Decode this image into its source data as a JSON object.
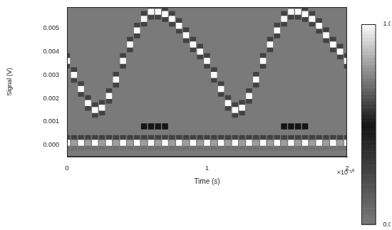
{
  "chart_data": {
    "type": "heatmap",
    "xlabel": "Time (s)",
    "ylabel": "Signal (V)",
    "x_exponent_label": "×10⁻¹⁰",
    "xlim": [
      0,
      2
    ],
    "xticks": [
      0,
      1,
      2
    ],
    "ylim": [
      -0.0005,
      0.0059
    ],
    "yticks": [
      {
        "value": 0,
        "label": "0.000"
      },
      {
        "value": 0.001,
        "label": "0.001"
      },
      {
        "value": 0.002,
        "label": "0.002"
      },
      {
        "value": 0.003,
        "label": "0.003"
      },
      {
        "value": 0.004,
        "label": "0.004"
      },
      {
        "value": 0.005,
        "label": "0.005"
      }
    ],
    "grid": false,
    "colorbar": {
      "range": [
        0,
        1
      ],
      "ticks": [
        {
          "value": 0,
          "label": "0.0"
        },
        {
          "value": 1,
          "label": "1.0"
        }
      ]
    },
    "cells": [
      [
        0,
        0.0038,
        0.6
      ],
      [
        0,
        0.0034,
        0.6
      ],
      [
        0,
        0.0036,
        1
      ],
      [
        0,
        0.0003,
        0.6
      ],
      [
        0,
        -0.0001,
        0.7
      ],
      [
        0,
        0.0001,
        1
      ],
      [
        0.05,
        0.0032,
        0.6
      ],
      [
        0.05,
        0.0028,
        0.6
      ],
      [
        0.05,
        0.003,
        1
      ],
      [
        0.05,
        0.0003,
        0.6
      ],
      [
        0.05,
        -0.0001,
        0.7
      ],
      [
        0.05,
        0.0001,
        0.8
      ],
      [
        0.1,
        0.0026,
        0.6
      ],
      [
        0.1,
        0.0022,
        0.6
      ],
      [
        0.1,
        0.0024,
        1
      ],
      [
        0.1,
        0.0003,
        0.6
      ],
      [
        0.1,
        -0.0001,
        0.7
      ],
      [
        0.1,
        0.0001,
        1
      ],
      [
        0.15,
        0.002,
        0.6
      ],
      [
        0.15,
        0.0016,
        0.6
      ],
      [
        0.15,
        0.0018,
        1
      ],
      [
        0.15,
        0.0003,
        0.6
      ],
      [
        0.15,
        -0.0001,
        0.7
      ],
      [
        0.15,
        0.0001,
        0.8
      ],
      [
        0.2,
        0.0017,
        0.6
      ],
      [
        0.2,
        0.0013,
        0.6
      ],
      [
        0.2,
        0.0015,
        1
      ],
      [
        0.2,
        0.0003,
        0.6
      ],
      [
        0.2,
        -0.0001,
        0.7
      ],
      [
        0.2,
        0.0001,
        1
      ],
      [
        0.25,
        0.0018,
        0.6
      ],
      [
        0.25,
        0.0014,
        0.6
      ],
      [
        0.25,
        0.0016,
        1
      ],
      [
        0.25,
        0.0003,
        0.6
      ],
      [
        0.25,
        -0.0001,
        0.7
      ],
      [
        0.25,
        0.0001,
        0.8
      ],
      [
        0.3,
        0.0023,
        0.6
      ],
      [
        0.3,
        0.0019,
        0.6
      ],
      [
        0.3,
        0.0021,
        1
      ],
      [
        0.3,
        0.0003,
        0.6
      ],
      [
        0.3,
        -0.0001,
        0.7
      ],
      [
        0.3,
        0.0001,
        1
      ],
      [
        0.35,
        0.003,
        0.6
      ],
      [
        0.35,
        0.0026,
        0.6
      ],
      [
        0.35,
        0.0028,
        1
      ],
      [
        0.35,
        0.0003,
        0.6
      ],
      [
        0.35,
        -0.0001,
        0.7
      ],
      [
        0.35,
        0.0001,
        0.8
      ],
      [
        0.4,
        0.0038,
        0.6
      ],
      [
        0.4,
        0.0034,
        0.6
      ],
      [
        0.4,
        0.0036,
        1
      ],
      [
        0.4,
        0.0003,
        0.6
      ],
      [
        0.4,
        -0.0001,
        0.7
      ],
      [
        0.4,
        0.0001,
        1
      ],
      [
        0.45,
        0.0045,
        0.6
      ],
      [
        0.45,
        0.0041,
        0.6
      ],
      [
        0.45,
        0.0043,
        1
      ],
      [
        0.45,
        0.0003,
        0.6
      ],
      [
        0.45,
        -0.0001,
        0.7
      ],
      [
        0.45,
        0.0001,
        0.8
      ],
      [
        0.5,
        0.0051,
        0.6
      ],
      [
        0.5,
        0.0047,
        0.6
      ],
      [
        0.5,
        0.0049,
        1
      ],
      [
        0.5,
        0.0003,
        0.6
      ],
      [
        0.5,
        -0.0001,
        0.7
      ],
      [
        0.5,
        0.0001,
        1
      ],
      [
        0.55,
        0.0056,
        0.6
      ],
      [
        0.55,
        0.0052,
        0.6
      ],
      [
        0.55,
        0.0054,
        1
      ],
      [
        0.55,
        0.0003,
        0.6
      ],
      [
        0.55,
        -0.0001,
        0.7
      ],
      [
        0.55,
        0.0001,
        0.8
      ],
      [
        0.55,
        0.0008,
        0.5
      ],
      [
        0.6,
        0.0059,
        0.6
      ],
      [
        0.6,
        0.0055,
        0.6
      ],
      [
        0.6,
        0.0057,
        1
      ],
      [
        0.6,
        0.0003,
        0.6
      ],
      [
        0.6,
        -0.0001,
        0.7
      ],
      [
        0.6,
        0.0001,
        1
      ],
      [
        0.6,
        0.0008,
        0.5
      ],
      [
        0.65,
        0.0059,
        0.6
      ],
      [
        0.65,
        0.0055,
        0.6
      ],
      [
        0.65,
        0.0057,
        1
      ],
      [
        0.65,
        0.0003,
        0.6
      ],
      [
        0.65,
        -0.0001,
        0.7
      ],
      [
        0.65,
        0.0001,
        0.8
      ],
      [
        0.65,
        0.0008,
        0.5
      ],
      [
        0.7,
        0.0058,
        0.6
      ],
      [
        0.7,
        0.0054,
        0.6
      ],
      [
        0.7,
        0.0056,
        1
      ],
      [
        0.7,
        0.0003,
        0.6
      ],
      [
        0.7,
        -0.0001,
        0.7
      ],
      [
        0.7,
        0.0001,
        1
      ],
      [
        0.7,
        0.0008,
        0.5
      ],
      [
        0.75,
        0.0056,
        0.6
      ],
      [
        0.75,
        0.0052,
        0.6
      ],
      [
        0.75,
        0.0054,
        1
      ],
      [
        0.75,
        0.0003,
        0.6
      ],
      [
        0.75,
        -0.0001,
        0.7
      ],
      [
        0.75,
        0.0001,
        0.8
      ],
      [
        0.8,
        0.0053,
        0.6
      ],
      [
        0.8,
        0.0049,
        0.6
      ],
      [
        0.8,
        0.0051,
        1
      ],
      [
        0.8,
        0.0003,
        0.6
      ],
      [
        0.8,
        -0.0001,
        0.7
      ],
      [
        0.8,
        0.0001,
        1
      ],
      [
        0.85,
        0.0049,
        0.6
      ],
      [
        0.85,
        0.0045,
        0.6
      ],
      [
        0.85,
        0.0047,
        1
      ],
      [
        0.85,
        0.0003,
        0.6
      ],
      [
        0.85,
        -0.0001,
        0.7
      ],
      [
        0.85,
        0.0001,
        0.8
      ],
      [
        0.9,
        0.0045,
        0.6
      ],
      [
        0.9,
        0.0041,
        0.6
      ],
      [
        0.9,
        0.0043,
        1
      ],
      [
        0.9,
        0.0003,
        0.6
      ],
      [
        0.9,
        -0.0001,
        0.7
      ],
      [
        0.9,
        0.0001,
        1
      ],
      [
        0.95,
        0.0042,
        0.6
      ],
      [
        0.95,
        0.0038,
        0.6
      ],
      [
        0.95,
        0.004,
        1
      ],
      [
        0.95,
        0.0003,
        0.6
      ],
      [
        0.95,
        -0.0001,
        0.7
      ],
      [
        0.95,
        0.0001,
        0.8
      ],
      [
        1,
        0.0038,
        0.6
      ],
      [
        1,
        0.0034,
        0.6
      ],
      [
        1,
        0.0036,
        1
      ],
      [
        1,
        0.0003,
        0.6
      ],
      [
        1,
        -0.0001,
        0.7
      ],
      [
        1,
        0.0001,
        1
      ],
      [
        1.05,
        0.0032,
        0.6
      ],
      [
        1.05,
        0.0028,
        0.6
      ],
      [
        1.05,
        0.003,
        1
      ],
      [
        1.05,
        0.0003,
        0.6
      ],
      [
        1.05,
        -0.0001,
        0.7
      ],
      [
        1.05,
        0.0001,
        0.8
      ],
      [
        1.1,
        0.0026,
        0.6
      ],
      [
        1.1,
        0.0022,
        0.6
      ],
      [
        1.1,
        0.0024,
        1
      ],
      [
        1.1,
        0.0003,
        0.6
      ],
      [
        1.1,
        -0.0001,
        0.7
      ],
      [
        1.1,
        0.0001,
        1
      ],
      [
        1.15,
        0.002,
        0.6
      ],
      [
        1.15,
        0.0016,
        0.6
      ],
      [
        1.15,
        0.0018,
        1
      ],
      [
        1.15,
        0.0003,
        0.6
      ],
      [
        1.15,
        -0.0001,
        0.7
      ],
      [
        1.15,
        0.0001,
        0.8
      ],
      [
        1.2,
        0.0017,
        0.6
      ],
      [
        1.2,
        0.0013,
        0.6
      ],
      [
        1.2,
        0.0015,
        1
      ],
      [
        1.2,
        0.0003,
        0.6
      ],
      [
        1.2,
        -0.0001,
        0.7
      ],
      [
        1.2,
        0.0001,
        1
      ],
      [
        1.25,
        0.0018,
        0.6
      ],
      [
        1.25,
        0.0014,
        0.6
      ],
      [
        1.25,
        0.0016,
        1
      ],
      [
        1.25,
        0.0003,
        0.6
      ],
      [
        1.25,
        -0.0001,
        0.7
      ],
      [
        1.25,
        0.0001,
        0.8
      ],
      [
        1.3,
        0.0023,
        0.6
      ],
      [
        1.3,
        0.0019,
        0.6
      ],
      [
        1.3,
        0.0021,
        1
      ],
      [
        1.3,
        0.0003,
        0.6
      ],
      [
        1.3,
        -0.0001,
        0.7
      ],
      [
        1.3,
        0.0001,
        1
      ],
      [
        1.35,
        0.003,
        0.6
      ],
      [
        1.35,
        0.0026,
        0.6
      ],
      [
        1.35,
        0.0028,
        1
      ],
      [
        1.35,
        0.0003,
        0.6
      ],
      [
        1.35,
        -0.0001,
        0.7
      ],
      [
        1.35,
        0.0001,
        0.8
      ],
      [
        1.4,
        0.0038,
        0.6
      ],
      [
        1.4,
        0.0034,
        0.6
      ],
      [
        1.4,
        0.0036,
        1
      ],
      [
        1.4,
        0.0003,
        0.6
      ],
      [
        1.4,
        -0.0001,
        0.7
      ],
      [
        1.4,
        0.0001,
        1
      ],
      [
        1.45,
        0.0045,
        0.6
      ],
      [
        1.45,
        0.0041,
        0.6
      ],
      [
        1.45,
        0.0043,
        1
      ],
      [
        1.45,
        0.0003,
        0.6
      ],
      [
        1.45,
        -0.0001,
        0.7
      ],
      [
        1.45,
        0.0001,
        0.8
      ],
      [
        1.5,
        0.0051,
        0.6
      ],
      [
        1.5,
        0.0047,
        0.6
      ],
      [
        1.5,
        0.0049,
        1
      ],
      [
        1.5,
        0.0003,
        0.6
      ],
      [
        1.5,
        -0.0001,
        0.7
      ],
      [
        1.5,
        0.0001,
        1
      ],
      [
        1.55,
        0.0056,
        0.6
      ],
      [
        1.55,
        0.0052,
        0.6
      ],
      [
        1.55,
        0.0054,
        1
      ],
      [
        1.55,
        0.0003,
        0.6
      ],
      [
        1.55,
        -0.0001,
        0.7
      ],
      [
        1.55,
        0.0001,
        0.8
      ],
      [
        1.55,
        0.0008,
        0.5
      ],
      [
        1.6,
        0.0059,
        0.6
      ],
      [
        1.6,
        0.0055,
        0.6
      ],
      [
        1.6,
        0.0057,
        1
      ],
      [
        1.6,
        0.0003,
        0.6
      ],
      [
        1.6,
        -0.0001,
        0.7
      ],
      [
        1.6,
        0.0001,
        1
      ],
      [
        1.6,
        0.0008,
        0.5
      ],
      [
        1.65,
        0.0059,
        0.6
      ],
      [
        1.65,
        0.0055,
        0.6
      ],
      [
        1.65,
        0.0057,
        1
      ],
      [
        1.65,
        0.0003,
        0.6
      ],
      [
        1.65,
        -0.0001,
        0.7
      ],
      [
        1.65,
        0.0001,
        0.8
      ],
      [
        1.65,
        0.0008,
        0.5
      ],
      [
        1.7,
        0.0058,
        0.6
      ],
      [
        1.7,
        0.0054,
        0.6
      ],
      [
        1.7,
        0.0056,
        1
      ],
      [
        1.7,
        0.0003,
        0.6
      ],
      [
        1.7,
        -0.0001,
        0.7
      ],
      [
        1.7,
        0.0001,
        1
      ],
      [
        1.7,
        0.0008,
        0.5
      ],
      [
        1.75,
        0.0056,
        0.6
      ],
      [
        1.75,
        0.0052,
        0.6
      ],
      [
        1.75,
        0.0054,
        1
      ],
      [
        1.75,
        0.0003,
        0.6
      ],
      [
        1.75,
        -0.0001,
        0.7
      ],
      [
        1.75,
        0.0001,
        0.8
      ],
      [
        1.8,
        0.0053,
        0.6
      ],
      [
        1.8,
        0.0049,
        0.6
      ],
      [
        1.8,
        0.0051,
        1
      ],
      [
        1.8,
        0.0003,
        0.6
      ],
      [
        1.8,
        -0.0001,
        0.7
      ],
      [
        1.8,
        0.0001,
        1
      ],
      [
        1.85,
        0.0049,
        0.6
      ],
      [
        1.85,
        0.0045,
        0.6
      ],
      [
        1.85,
        0.0047,
        1
      ],
      [
        1.85,
        0.0003,
        0.6
      ],
      [
        1.85,
        -0.0001,
        0.7
      ],
      [
        1.85,
        0.0001,
        0.8
      ],
      [
        1.9,
        0.0045,
        0.6
      ],
      [
        1.9,
        0.0041,
        0.6
      ],
      [
        1.9,
        0.0043,
        1
      ],
      [
        1.9,
        0.0003,
        0.6
      ],
      [
        1.9,
        -0.0001,
        0.7
      ],
      [
        1.9,
        0.0001,
        1
      ],
      [
        1.95,
        0.0042,
        0.6
      ],
      [
        1.95,
        0.0038,
        0.6
      ],
      [
        1.95,
        0.004,
        1
      ],
      [
        1.95,
        0.0003,
        0.6
      ],
      [
        1.95,
        -0.0001,
        0.7
      ],
      [
        1.95,
        0.0001,
        0.8
      ],
      [
        2,
        0.0038,
        0.6
      ],
      [
        2,
        0.0034,
        0.6
      ],
      [
        2,
        0.0036,
        1
      ],
      [
        2,
        0.0003,
        0.6
      ],
      [
        2,
        -0.0001,
        0.7
      ],
      [
        2,
        0.0001,
        1
      ]
    ]
  }
}
